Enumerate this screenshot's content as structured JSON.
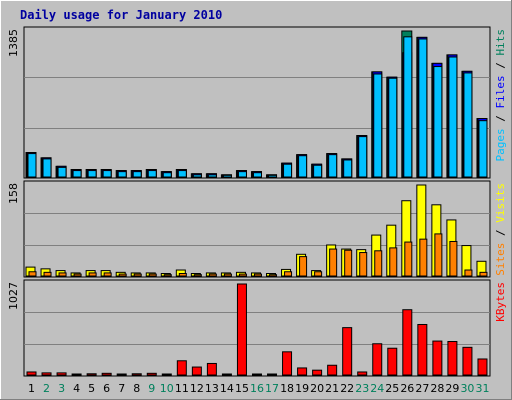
{
  "chart_data": {
    "type": "bar",
    "title": "Daily usage for January 2010",
    "categories": [
      "1",
      "2",
      "3",
      "4",
      "5",
      "6",
      "7",
      "8",
      "9",
      "10",
      "11",
      "12",
      "13",
      "14",
      "15",
      "16",
      "17",
      "18",
      "19",
      "20",
      "21",
      "22",
      "23",
      "24",
      "25",
      "26",
      "27",
      "28",
      "29",
      "30",
      "31"
    ],
    "weekend_days": [
      "2",
      "3",
      "9",
      "10",
      "16",
      "17",
      "23",
      "24",
      "30",
      "31"
    ],
    "panels": [
      {
        "id": "hits",
        "ymax": 1385,
        "ymax_label": "1385",
        "legend": [
          {
            "text": "Pages",
            "color": "#00c0ff"
          },
          {
            "text": " / ",
            "color": "#000000"
          },
          {
            "text": "Files",
            "color": "#0000ff"
          },
          {
            "text": " / ",
            "color": "#000000"
          },
          {
            "text": "Hits",
            "color": "#00805c"
          }
        ],
        "series": [
          {
            "name": "Hits",
            "color": "#00805c",
            "values": [
              240,
              190,
              110,
              80,
              80,
              80,
              70,
              70,
              80,
              60,
              80,
              40,
              40,
              30,
              70,
              60,
              30,
              140,
              220,
              130,
              230,
              180,
              400,
              1000,
              950,
              1385,
              1325,
              1080,
              1160,
              1005,
              560
            ]
          },
          {
            "name": "Files",
            "color": "#0000ff",
            "values": [
              240,
              190,
              110,
              80,
              80,
              80,
              70,
              70,
              80,
              60,
              80,
              40,
              40,
              30,
              70,
              60,
              30,
              140,
              220,
              130,
              230,
              180,
              400,
              1000,
              950,
              1180,
              1325,
              1080,
              1160,
              1005,
              560
            ]
          },
          {
            "name": "Pages",
            "color": "#00c0ff",
            "values": [
              230,
              180,
              100,
              70,
              70,
              70,
              60,
              60,
              70,
              50,
              70,
              30,
              30,
              25,
              60,
              50,
              25,
              130,
              210,
              120,
              220,
              170,
              390,
              980,
              940,
              1330,
              1310,
              1050,
              1140,
              990,
              540
            ]
          }
        ]
      },
      {
        "id": "visits",
        "ymax": 158,
        "ymax_label": "158",
        "legend": [
          {
            "text": "Sites",
            "color": "#ff8000"
          },
          {
            "text": " / ",
            "color": "#000000"
          },
          {
            "text": "Visits",
            "color": "#ffff00"
          }
        ],
        "series": [
          {
            "name": "Visits",
            "color": "#ffff00",
            "values": [
              17,
              14,
              11,
              7,
              11,
              11,
              8,
              7,
              7,
              6,
              12,
              6,
              7,
              7,
              8,
              7,
              6,
              13,
              39,
              11,
              55,
              48,
              47,
              72,
              89,
              131,
              158,
              124,
              98,
              54,
              27
            ]
          },
          {
            "name": "Sites",
            "color": "#ff8000",
            "values": [
              9,
              8,
              7,
              5,
              7,
              7,
              5,
              5,
              5,
              4,
              6,
              4,
              5,
              5,
              5,
              5,
              4,
              9,
              35,
              9,
              48,
              46,
              42,
              45,
              50,
              60,
              65,
              74,
              61,
              12,
              8
            ]
          }
        ]
      },
      {
        "id": "kbytes",
        "ymax": 1027,
        "ymax_label": "1027",
        "legend": [
          {
            "text": "KBytes",
            "color": "#ff0000"
          }
        ],
        "series": [
          {
            "name": "KBytes",
            "color": "#ff0000",
            "values": [
              45,
              35,
              35,
              20,
              25,
              30,
              20,
              25,
              30,
              15,
              170,
              100,
              140,
              15,
              1027,
              15,
              20,
              270,
              90,
              65,
              120,
              540,
              45,
              360,
              310,
              740,
              575,
              390,
              385,
              320,
              190
            ]
          }
        ]
      }
    ]
  }
}
